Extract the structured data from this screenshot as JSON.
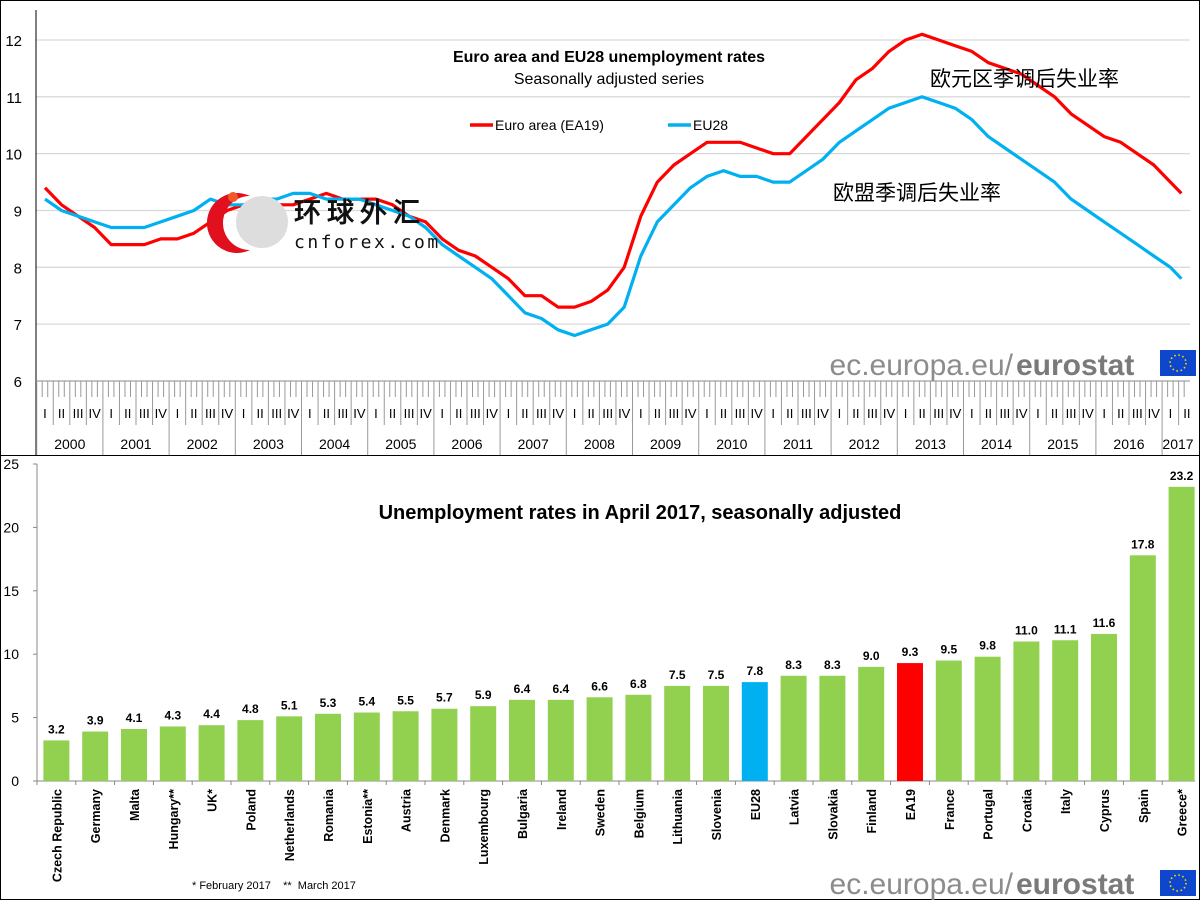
{
  "chart_data": [
    {
      "type": "line",
      "title": "Euro area and EU28 unemployment rates",
      "subtitle": "Seasonally adjusted series",
      "ylim": [
        6,
        12.3
      ],
      "yticks": [
        6,
        7,
        8,
        9,
        10,
        11,
        12
      ],
      "grid": true,
      "legend_placement": "top-center",
      "quarter_labels": [
        "I",
        "II",
        "III",
        "IV"
      ],
      "years": [
        "2000",
        "2001",
        "2002",
        "2003",
        "2004",
        "2005",
        "2006",
        "2007",
        "2008",
        "2009",
        "2010",
        "2011",
        "2012",
        "2013",
        "2014",
        "2015",
        "2016",
        "2017"
      ],
      "x_resolution": "quarterly (last point April 2017)",
      "series": [
        {
          "name": "Euro area (EA19)",
          "color": "#FF0000",
          "values": [
            9.4,
            9.1,
            8.9,
            8.7,
            8.4,
            8.4,
            8.4,
            8.5,
            8.5,
            8.6,
            8.8,
            9.0,
            9.1,
            9.1,
            9.1,
            9.1,
            9.2,
            9.3,
            9.2,
            9.2,
            9.2,
            9.1,
            8.9,
            8.8,
            8.5,
            8.3,
            8.2,
            8.0,
            7.8,
            7.5,
            7.5,
            7.3,
            7.3,
            7.4,
            7.6,
            8.0,
            8.9,
            9.5,
            9.8,
            10.0,
            10.2,
            10.2,
            10.2,
            10.1,
            10.0,
            10.0,
            10.3,
            10.6,
            10.9,
            11.3,
            11.5,
            11.8,
            12.0,
            12.1,
            12.0,
            11.9,
            11.8,
            11.6,
            11.5,
            11.4,
            11.2,
            11.0,
            10.7,
            10.5,
            10.3,
            10.2,
            10.0,
            9.8,
            9.5,
            9.3
          ]
        },
        {
          "name": "EU28",
          "color": "#00B0F0",
          "values": [
            9.2,
            9.0,
            8.9,
            8.8,
            8.7,
            8.7,
            8.7,
            8.8,
            8.9,
            9.0,
            9.2,
            9.1,
            9.1,
            9.2,
            9.2,
            9.3,
            9.3,
            9.2,
            9.2,
            9.2,
            9.1,
            9.0,
            8.9,
            8.7,
            8.4,
            8.2,
            8.0,
            7.8,
            7.5,
            7.2,
            7.1,
            6.9,
            6.8,
            6.9,
            7.0,
            7.3,
            8.2,
            8.8,
            9.1,
            9.4,
            9.6,
            9.7,
            9.6,
            9.6,
            9.5,
            9.5,
            9.7,
            9.9,
            10.2,
            10.4,
            10.6,
            10.8,
            10.9,
            11.0,
            10.9,
            10.8,
            10.6,
            10.3,
            10.1,
            9.9,
            9.7,
            9.5,
            9.2,
            9.0,
            8.8,
            8.6,
            8.4,
            8.2,
            8.0,
            7.8
          ]
        }
      ],
      "annotations": {
        "euro_area_cn": "欧元区季调后失业率",
        "eu_cn": "欧盟季调后失业率"
      }
    },
    {
      "type": "bar",
      "title": "Unemployment rates in April 2017, seasonally adjusted",
      "ylim": [
        0,
        25
      ],
      "yticks": [
        0,
        5,
        10,
        15,
        20,
        25
      ],
      "grid": false,
      "categories": [
        "Czech Republic",
        "Germany",
        "Malta",
        "Hungary**",
        "UK*",
        "Poland",
        "Netherlands",
        "Romania",
        "Estonia**",
        "Austria",
        "Denmark",
        "Luxembourg",
        "Bulgaria",
        "Ireland",
        "Sweden",
        "Belgium",
        "Lithuania",
        "Slovenia",
        "EU28",
        "Latvia",
        "Slovakia",
        "Finland",
        "EA19",
        "France",
        "Portugal",
        "Croatia",
        "Italy",
        "Cyprus",
        "Spain",
        "Greece*"
      ],
      "values": [
        3.2,
        3.9,
        4.1,
        4.3,
        4.4,
        4.8,
        5.1,
        5.3,
        5.4,
        5.5,
        5.7,
        5.9,
        6.4,
        6.4,
        6.6,
        6.8,
        7.5,
        7.5,
        7.8,
        8.3,
        8.3,
        9.0,
        9.3,
        9.5,
        9.8,
        11.0,
        11.1,
        11.6,
        17.8,
        23.2
      ],
      "labels": [
        "3.2",
        "3.9",
        "4.1",
        "4.3",
        "4.4",
        "4.8",
        "5.1",
        "5.3",
        "5.4",
        "5.5",
        "5.7",
        "5.9",
        "6.4",
        "6.4",
        "6.6",
        "6.8",
        "7.5",
        "7.5",
        "7.8",
        "8.3",
        "8.3",
        "9.0",
        "9.3",
        "9.5",
        "9.8",
        "11.0",
        "11.1",
        "11.6",
        "17.8",
        "23.2"
      ],
      "colors": {
        "default": "#92D050",
        "EU28": "#00B0F0",
        "EA19": "#FF0000"
      },
      "footnote": "* February 2017    **  March 2017"
    }
  ],
  "branding": {
    "site": "ec.europa.eu/",
    "brand": "eurostat",
    "flag_color": "#0E47CB",
    "star_color": "#FFDD00"
  },
  "watermark": {
    "cn": "环球外汇",
    "domain": "cnforex.com"
  }
}
